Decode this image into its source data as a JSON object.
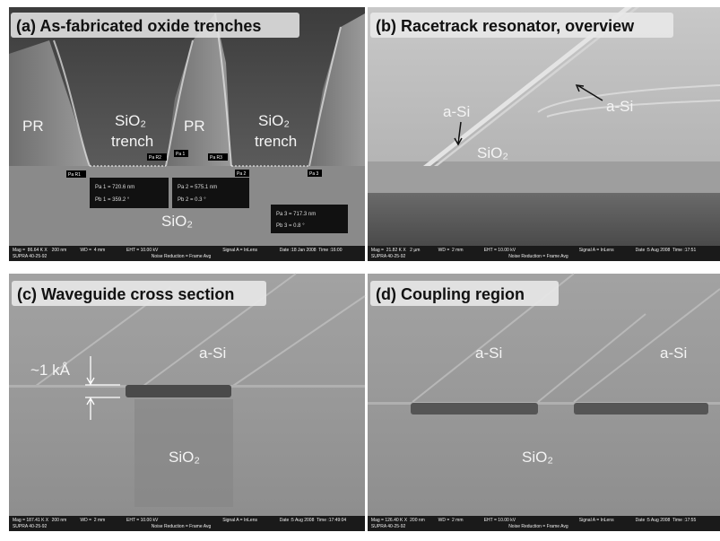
{
  "panels": [
    {
      "title": "(a) As-fabricated oxide trenches",
      "labels": [
        "PR",
        "SiO₂",
        "trench",
        "PR",
        "SiO₂",
        "trench",
        "SiO₂"
      ],
      "markers": [
        "Pa R1",
        "Pa R2",
        "Pa 1",
        "Pa R3",
        "Pa 2",
        "Pa 3"
      ],
      "measurements": [
        [
          "Pa 1 = 720.6 nm",
          "Pb 1 = 359.2 °"
        ],
        [
          "Pa 2 = 575.1 nm",
          "Pb 2 =  0.3 °"
        ],
        [
          "Pa 3 = 717.3 nm",
          "Pb 3 =  0.8 °"
        ]
      ],
      "info": {
        "row1": [
          "Mag =  86.64 K X",
          "200 nm",
          "WD =  4 mm",
          "EHT = 10.00 kV",
          "Signal A = InLens",
          "Date :18 Jan 2008  Time :16:00"
        ],
        "row2": [
          "SUPRA 40-25-92",
          "Noise Reduction = Frame Avg"
        ]
      }
    },
    {
      "title": "(b) Racetrack resonator, overview",
      "labels": [
        "a-Si",
        "a-Si",
        "SiO₂"
      ],
      "info": {
        "row1": [
          "Mag =  21.82 K X",
          "2 µm",
          "WD =  2 mm",
          "EHT = 10.00 kV",
          "Signal A = InLens",
          "Date :5 Aug 2008  Time :17:51"
        ],
        "row2": [
          "SUPRA 40-25-92",
          "Noise Reduction = Frame Avg"
        ]
      }
    },
    {
      "title": "(c) Waveguide cross section",
      "labels": [
        "a-Si",
        "SiO₂",
        "~1 kÅ"
      ],
      "info": {
        "row1": [
          "Mag = 187.41 K X",
          "200 nm",
          "WD =  2 mm",
          "EHT = 10.00 kV",
          "Signal A = InLens",
          "Date :5 Aug 2008  Time :17:49:04"
        ],
        "row2": [
          "SUPRA 40-25-92",
          "Noise Reduction = Frame Avg"
        ]
      }
    },
    {
      "title": "(d) Coupling region",
      "labels": [
        "a-Si",
        "a-Si",
        "SiO₂"
      ],
      "info": {
        "row1": [
          "Mag = 126.40 K X",
          "200 nm",
          "WD =  2 mm",
          "EHT = 10.00 kV",
          "Signal A = InLens",
          "Date :5 Aug 2008  Time :17:55"
        ],
        "row2": [
          "SUPRA 40-25-92",
          "Noise Reduction = Frame Avg"
        ]
      }
    }
  ]
}
